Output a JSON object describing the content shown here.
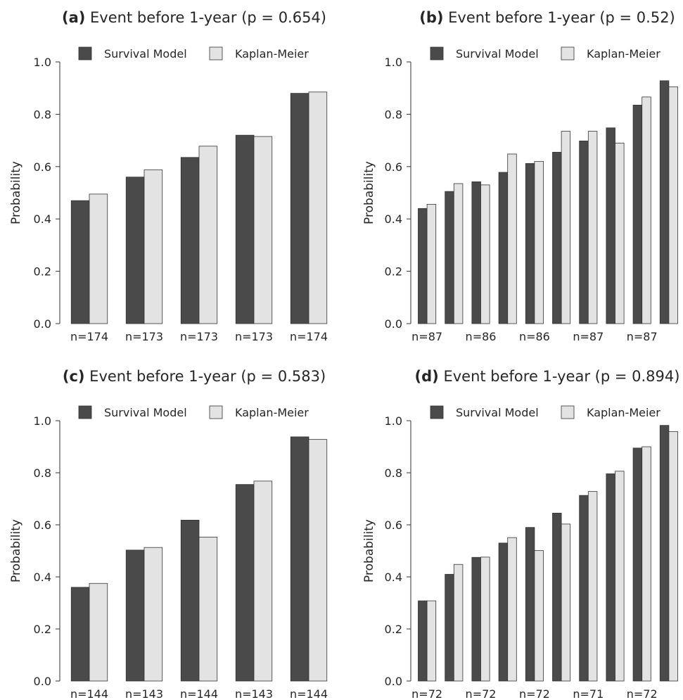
{
  "colors": {
    "survival_model": "#4a4a4a",
    "kaplan_meier": "#e3e3e3",
    "text": "#262626",
    "axis": "#333333"
  },
  "legend": {
    "survival_model": "Survival Model",
    "kaplan_meier": "Kaplan-Meier"
  },
  "chart_data": [
    {
      "type": "bar",
      "panel": "(a)",
      "title": "Event before 1-year (p = 0.654)",
      "ylabel": "Probability",
      "ylim": [
        0,
        1
      ],
      "yticks": [
        "0.0",
        "0.2",
        "0.4",
        "0.6",
        "0.8",
        "1.0"
      ],
      "categories": [
        "n=174",
        "n=173",
        "n=173",
        "n=173",
        "n=174"
      ],
      "series": [
        {
          "name": "Survival Model",
          "values": [
            0.47,
            0.56,
            0.635,
            0.72,
            0.88
          ]
        },
        {
          "name": "Kaplan-Meier",
          "values": [
            0.495,
            0.588,
            0.678,
            0.715,
            0.885
          ]
        }
      ]
    },
    {
      "type": "bar",
      "panel": "(b)",
      "title": "Event before 1-year (p = 0.52)",
      "ylabel": "Probability",
      "ylim": [
        0,
        1
      ],
      "yticks": [
        "0.0",
        "0.2",
        "0.4",
        "0.6",
        "0.8",
        "1.0"
      ],
      "categories": [
        "n=87",
        "",
        "n=86",
        "",
        "n=86",
        "",
        "n=87",
        "",
        "n=87",
        ""
      ],
      "series": [
        {
          "name": "Survival Model",
          "values": [
            0.44,
            0.505,
            0.542,
            0.578,
            0.612,
            0.655,
            0.698,
            0.748,
            0.835,
            0.928
          ]
        },
        {
          "name": "Kaplan-Meier",
          "values": [
            0.456,
            0.535,
            0.53,
            0.648,
            0.62,
            0.735,
            0.735,
            0.69,
            0.866,
            0.905
          ]
        }
      ]
    },
    {
      "type": "bar",
      "panel": "(c)",
      "title": "Event before 1-year (p = 0.583)",
      "ylabel": "Probability",
      "ylim": [
        0,
        1
      ],
      "yticks": [
        "0.0",
        "0.2",
        "0.4",
        "0.6",
        "0.8",
        "1.0"
      ],
      "categories": [
        "n=144",
        "n=143",
        "n=144",
        "n=143",
        "n=144"
      ],
      "series": [
        {
          "name": "Survival Model",
          "values": [
            0.36,
            0.503,
            0.618,
            0.755,
            0.938
          ]
        },
        {
          "name": "Kaplan-Meier",
          "values": [
            0.375,
            0.513,
            0.553,
            0.768,
            0.928
          ]
        }
      ]
    },
    {
      "type": "bar",
      "panel": "(d)",
      "title": "Event before 1-year (p = 0.894)",
      "ylabel": "Probability",
      "ylim": [
        0,
        1
      ],
      "yticks": [
        "0.0",
        "0.2",
        "0.4",
        "0.6",
        "0.8",
        "1.0"
      ],
      "categories": [
        "n=72",
        "",
        "n=72",
        "",
        "n=72",
        "",
        "n=71",
        "",
        "n=72",
        ""
      ],
      "series": [
        {
          "name": "Survival Model",
          "values": [
            0.308,
            0.41,
            0.475,
            0.53,
            0.59,
            0.645,
            0.713,
            0.796,
            0.895,
            0.982
          ]
        },
        {
          "name": "Kaplan-Meier",
          "values": [
            0.308,
            0.448,
            0.476,
            0.551,
            0.501,
            0.603,
            0.728,
            0.806,
            0.9,
            0.958
          ]
        }
      ]
    }
  ]
}
